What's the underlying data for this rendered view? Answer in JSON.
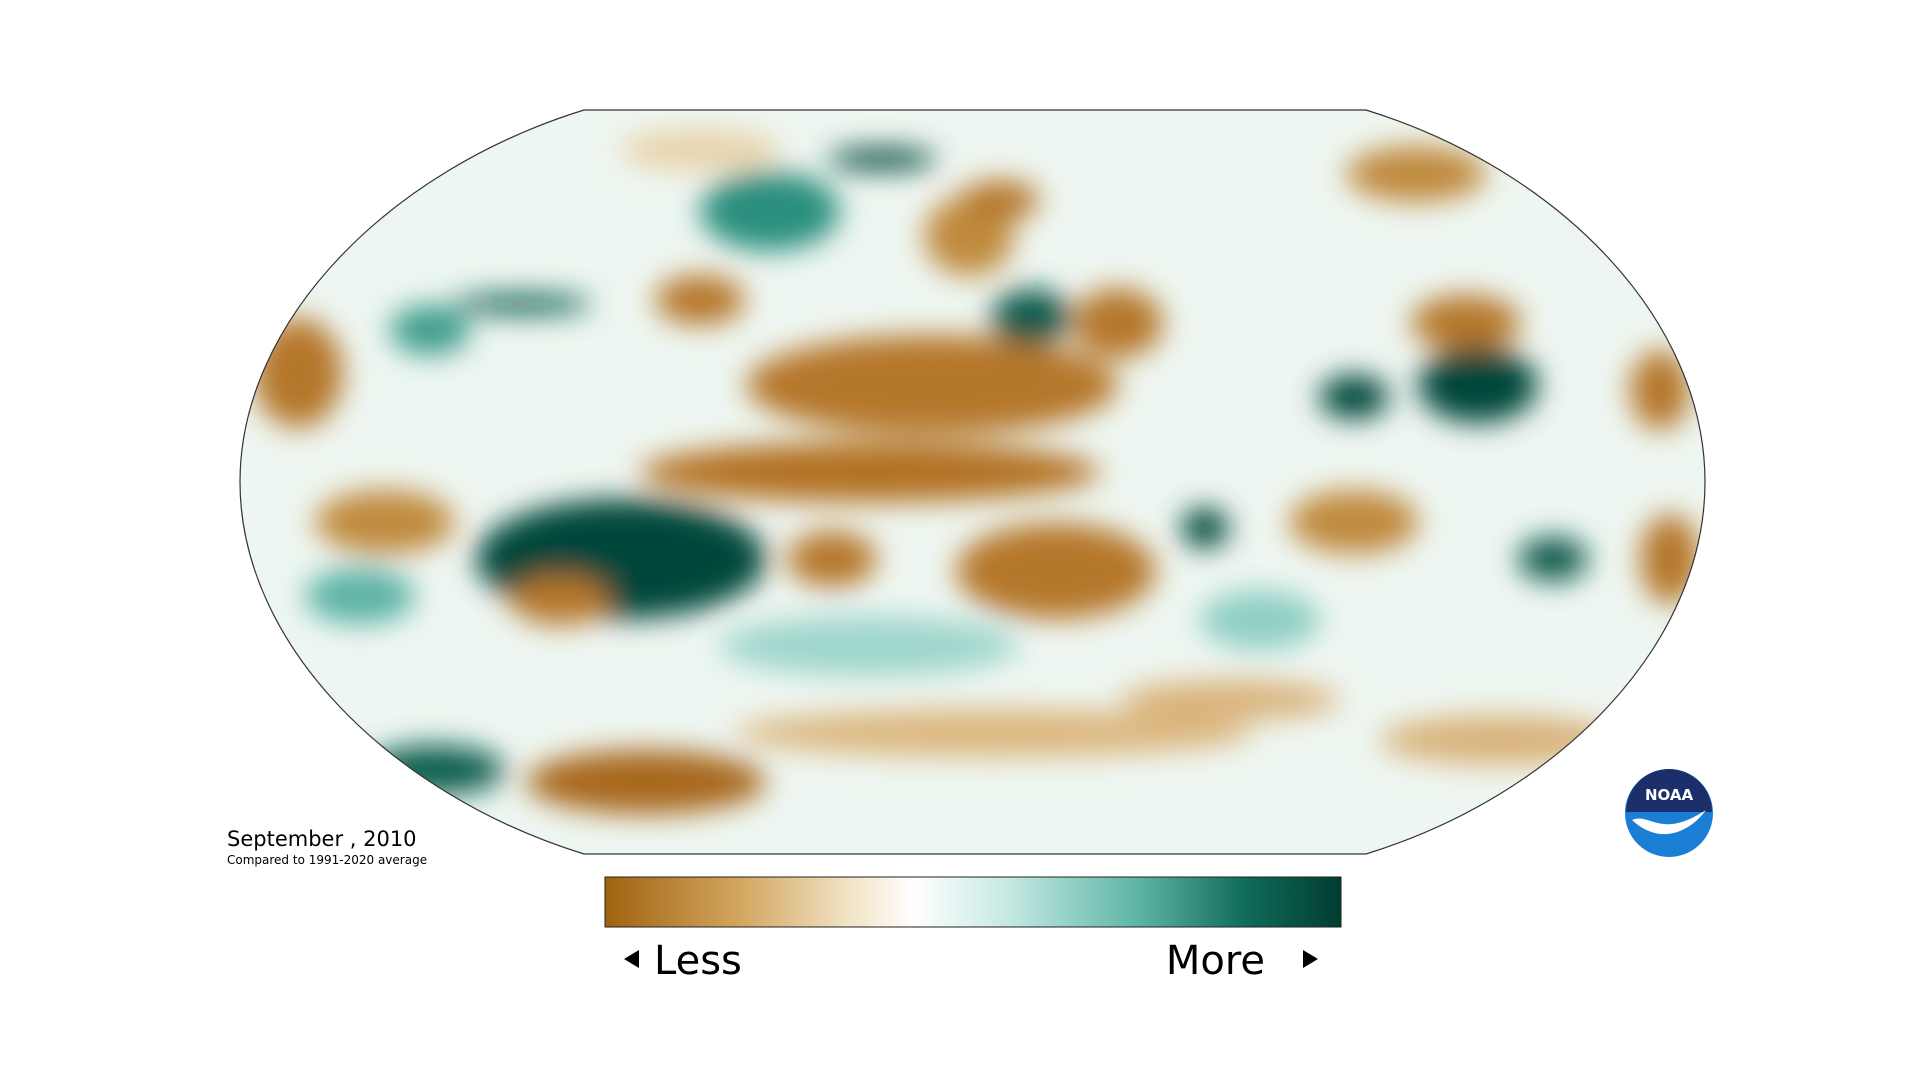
{
  "header": {
    "date": "September , 2010",
    "subtitle": "Compared to 1991-2020 average"
  },
  "legend": {
    "low": "Less",
    "high": "More"
  },
  "logo": {
    "label": "NOAA"
  }
}
